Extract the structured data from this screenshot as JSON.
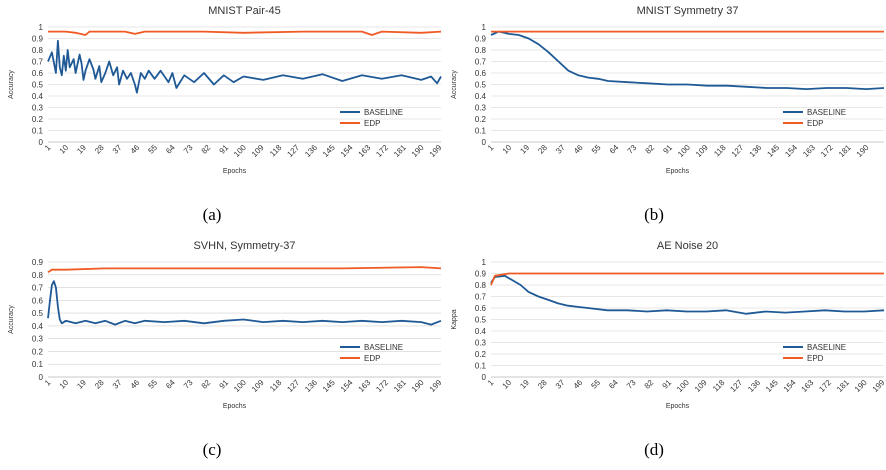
{
  "captions": [
    "(a)",
    "(b)",
    "(c)",
    "(d)"
  ],
  "colors": {
    "baseline": "#1f5a96",
    "edp": "#f05a23"
  },
  "chart_data": [
    {
      "type": "line",
      "title": "MNIST Pair-45",
      "xlabel": "Epochs",
      "ylabel": "Accuracy",
      "ylim": [
        0,
        1
      ],
      "yticks": [
        "0",
        "0.1",
        "0.2",
        "0.3",
        "0.4",
        "0.5",
        "0.6",
        "0.7",
        "0.8",
        "0.9",
        "1"
      ],
      "xticks": [
        "1",
        "10",
        "19",
        "28",
        "37",
        "46",
        "55",
        "64",
        "73",
        "82",
        "91",
        "100",
        "109",
        "118",
        "127",
        "136",
        "145",
        "154",
        "163",
        "172",
        "181",
        "190",
        "199"
      ],
      "xrange": [
        1,
        200
      ],
      "legend": "bottom-right",
      "grid": true,
      "series": [
        {
          "name": "BASELINE",
          "color": "#1f5a96",
          "points": [
            [
              1,
              0.7
            ],
            [
              3,
              0.78
            ],
            [
              5,
              0.6
            ],
            [
              6,
              0.88
            ],
            [
              7,
              0.65
            ],
            [
              8,
              0.58
            ],
            [
              9,
              0.75
            ],
            [
              10,
              0.62
            ],
            [
              11,
              0.8
            ],
            [
              12,
              0.65
            ],
            [
              14,
              0.72
            ],
            [
              15,
              0.6
            ],
            [
              17,
              0.76
            ],
            [
              18,
              0.68
            ],
            [
              19,
              0.54
            ],
            [
              20,
              0.62
            ],
            [
              22,
              0.72
            ],
            [
              24,
              0.63
            ],
            [
              25,
              0.55
            ],
            [
              27,
              0.66
            ],
            [
              28,
              0.52
            ],
            [
              30,
              0.6
            ],
            [
              32,
              0.7
            ],
            [
              34,
              0.58
            ],
            [
              36,
              0.65
            ],
            [
              37,
              0.5
            ],
            [
              39,
              0.62
            ],
            [
              41,
              0.55
            ],
            [
              43,
              0.6
            ],
            [
              45,
              0.5
            ],
            [
              46,
              0.43
            ],
            [
              48,
              0.6
            ],
            [
              50,
              0.55
            ],
            [
              52,
              0.62
            ],
            [
              55,
              0.55
            ],
            [
              58,
              0.62
            ],
            [
              62,
              0.52
            ],
            [
              64,
              0.6
            ],
            [
              66,
              0.47
            ],
            [
              70,
              0.58
            ],
            [
              75,
              0.52
            ],
            [
              80,
              0.6
            ],
            [
              85,
              0.5
            ],
            [
              90,
              0.58
            ],
            [
              95,
              0.52
            ],
            [
              100,
              0.57
            ],
            [
              110,
              0.54
            ],
            [
              120,
              0.58
            ],
            [
              130,
              0.55
            ],
            [
              140,
              0.59
            ],
            [
              150,
              0.53
            ],
            [
              160,
              0.58
            ],
            [
              170,
              0.55
            ],
            [
              180,
              0.58
            ],
            [
              190,
              0.54
            ],
            [
              195,
              0.57
            ],
            [
              198,
              0.51
            ],
            [
              200,
              0.57
            ]
          ]
        },
        {
          "name": "EDP",
          "color": "#f05a23",
          "points": [
            [
              1,
              0.96
            ],
            [
              10,
              0.96
            ],
            [
              15,
              0.95
            ],
            [
              20,
              0.93
            ],
            [
              22,
              0.96
            ],
            [
              40,
              0.96
            ],
            [
              45,
              0.94
            ],
            [
              50,
              0.96
            ],
            [
              80,
              0.96
            ],
            [
              100,
              0.95
            ],
            [
              130,
              0.96
            ],
            [
              160,
              0.96
            ],
            [
              165,
              0.93
            ],
            [
              170,
              0.96
            ],
            [
              190,
              0.95
            ],
            [
              200,
              0.96
            ]
          ]
        }
      ]
    },
    {
      "type": "line",
      "title": "MNIST Symmetry 37",
      "xlabel": "Epochs",
      "ylabel": "Accuracy",
      "ylim": [
        0,
        1
      ],
      "yticks": [
        "0",
        "0.1",
        "0.2",
        "0.3",
        "0.4",
        "0.5",
        "0.6",
        "0.7",
        "0.8",
        "0.9",
        "1"
      ],
      "xticks": [
        "1",
        "10",
        "19",
        "28",
        "37",
        "46",
        "55",
        "64",
        "73",
        "82",
        "91",
        "100",
        "109",
        "118",
        "127",
        "136",
        "145",
        "154",
        "163",
        "172",
        "181",
        "190"
      ],
      "xrange": [
        1,
        199
      ],
      "legend": "bottom-right",
      "grid": true,
      "series": [
        {
          "name": "BASELINE",
          "color": "#1f5a96",
          "points": [
            [
              1,
              0.93
            ],
            [
              5,
              0.96
            ],
            [
              10,
              0.94
            ],
            [
              15,
              0.93
            ],
            [
              20,
              0.9
            ],
            [
              25,
              0.85
            ],
            [
              30,
              0.78
            ],
            [
              35,
              0.7
            ],
            [
              40,
              0.62
            ],
            [
              45,
              0.58
            ],
            [
              50,
              0.56
            ],
            [
              55,
              0.55
            ],
            [
              60,
              0.53
            ],
            [
              70,
              0.52
            ],
            [
              80,
              0.51
            ],
            [
              90,
              0.5
            ],
            [
              100,
              0.5
            ],
            [
              110,
              0.49
            ],
            [
              120,
              0.49
            ],
            [
              130,
              0.48
            ],
            [
              140,
              0.47
            ],
            [
              150,
              0.47
            ],
            [
              160,
              0.46
            ],
            [
              170,
              0.47
            ],
            [
              180,
              0.47
            ],
            [
              190,
              0.46
            ],
            [
              199,
              0.47
            ]
          ]
        },
        {
          "name": "EDP",
          "color": "#f05a23",
          "points": [
            [
              1,
              0.96
            ],
            [
              50,
              0.96
            ],
            [
              100,
              0.96
            ],
            [
              150,
              0.96
            ],
            [
              199,
              0.96
            ]
          ]
        }
      ]
    },
    {
      "type": "line",
      "title": "SVHN, Symmetry-37",
      "xlabel": "Epochs",
      "ylabel": "Accuracy",
      "ylim": [
        0,
        0.9
      ],
      "yticks": [
        "0",
        "0.1",
        "0.2",
        "0.3",
        "0.4",
        "0.5",
        "0.6",
        "0.7",
        "0.8",
        "0.9"
      ],
      "xticks": [
        "1",
        "10",
        "19",
        "28",
        "37",
        "46",
        "55",
        "64",
        "73",
        "82",
        "91",
        "100",
        "109",
        "118",
        "127",
        "136",
        "145",
        "154",
        "163",
        "172",
        "181",
        "190",
        "199"
      ],
      "xrange": [
        1,
        200
      ],
      "legend": "bottom-right",
      "grid": true,
      "series": [
        {
          "name": "BASELINE",
          "color": "#1f5a96",
          "points": [
            [
              1,
              0.46
            ],
            [
              2,
              0.6
            ],
            [
              3,
              0.72
            ],
            [
              4,
              0.75
            ],
            [
              5,
              0.7
            ],
            [
              6,
              0.55
            ],
            [
              7,
              0.45
            ],
            [
              8,
              0.42
            ],
            [
              10,
              0.44
            ],
            [
              15,
              0.42
            ],
            [
              20,
              0.44
            ],
            [
              25,
              0.42
            ],
            [
              30,
              0.44
            ],
            [
              35,
              0.41
            ],
            [
              40,
              0.44
            ],
            [
              45,
              0.42
            ],
            [
              50,
              0.44
            ],
            [
              60,
              0.43
            ],
            [
              70,
              0.44
            ],
            [
              80,
              0.42
            ],
            [
              90,
              0.44
            ],
            [
              100,
              0.45
            ],
            [
              110,
              0.43
            ],
            [
              120,
              0.44
            ],
            [
              130,
              0.43
            ],
            [
              140,
              0.44
            ],
            [
              150,
              0.43
            ],
            [
              160,
              0.44
            ],
            [
              170,
              0.43
            ],
            [
              180,
              0.44
            ],
            [
              190,
              0.43
            ],
            [
              195,
              0.41
            ],
            [
              200,
              0.44
            ]
          ]
        },
        {
          "name": "EDP",
          "color": "#f05a23",
          "points": [
            [
              1,
              0.82
            ],
            [
              3,
              0.84
            ],
            [
              10,
              0.84
            ],
            [
              30,
              0.85
            ],
            [
              60,
              0.85
            ],
            [
              100,
              0.85
            ],
            [
              150,
              0.85
            ],
            [
              190,
              0.86
            ],
            [
              200,
              0.85
            ]
          ]
        }
      ]
    },
    {
      "type": "line",
      "title": "AE Noise 20",
      "xlabel": "Epochs",
      "ylabel": "Kappa",
      "ylim": [
        0,
        1
      ],
      "yticks": [
        "0",
        "0.1",
        "0.2",
        "0.3",
        "0.4",
        "0.5",
        "0.6",
        "0.7",
        "0.8",
        "0.9",
        "1"
      ],
      "xticks": [
        "1",
        "10",
        "19",
        "28",
        "37",
        "46",
        "55",
        "64",
        "73",
        "82",
        "91",
        "100",
        "109",
        "118",
        "127",
        "136",
        "145",
        "154",
        "163",
        "172",
        "181",
        "190",
        "199"
      ],
      "xrange": [
        1,
        200
      ],
      "legend": "bottom-right",
      "grid": true,
      "series": [
        {
          "name": "BASELINE",
          "color": "#1f5a96",
          "points": [
            [
              1,
              0.82
            ],
            [
              3,
              0.87
            ],
            [
              8,
              0.88
            ],
            [
              12,
              0.84
            ],
            [
              16,
              0.8
            ],
            [
              20,
              0.74
            ],
            [
              25,
              0.7
            ],
            [
              30,
              0.67
            ],
            [
              35,
              0.64
            ],
            [
              40,
              0.62
            ],
            [
              45,
              0.61
            ],
            [
              50,
              0.6
            ],
            [
              60,
              0.58
            ],
            [
              70,
              0.58
            ],
            [
              80,
              0.57
            ],
            [
              90,
              0.58
            ],
            [
              100,
              0.57
            ],
            [
              110,
              0.57
            ],
            [
              120,
              0.58
            ],
            [
              130,
              0.55
            ],
            [
              140,
              0.57
            ],
            [
              150,
              0.56
            ],
            [
              160,
              0.57
            ],
            [
              170,
              0.58
            ],
            [
              180,
              0.57
            ],
            [
              190,
              0.57
            ],
            [
              200,
              0.58
            ]
          ]
        },
        {
          "name": "EPD",
          "color": "#f05a23",
          "points": [
            [
              1,
              0.8
            ],
            [
              3,
              0.88
            ],
            [
              10,
              0.9
            ],
            [
              50,
              0.9
            ],
            [
              100,
              0.9
            ],
            [
              150,
              0.9
            ],
            [
              200,
              0.9
            ]
          ]
        }
      ]
    }
  ]
}
